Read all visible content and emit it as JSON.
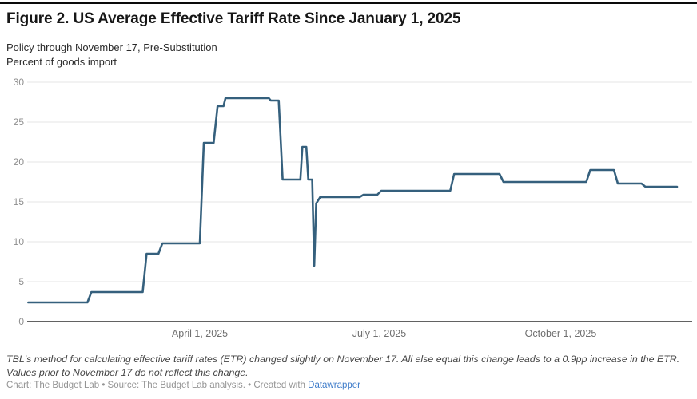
{
  "header": {
    "title": "Figure 2. US Average Effective Tariff Rate Since January 1, 2025",
    "subtitle_line1": "Policy through November 17, Pre-Substitution",
    "subtitle_line2": "Percent of goods import"
  },
  "chart_data": {
    "type": "line",
    "title": "Figure 2. US Average Effective Tariff Rate Since January 1, 2025",
    "subtitle": "Policy through November 17, Pre-Substitution",
    "ylabel": "Percent of goods import",
    "xlabel": "",
    "ylim": [
      0,
      30
    ],
    "y_ticks": [
      0,
      5,
      10,
      15,
      20,
      25,
      30
    ],
    "grid": "horizontal-only",
    "legend": "none",
    "x_domain": [
      "2025-01-01",
      "2025-11-29"
    ],
    "x_ticks": [
      {
        "date": "2025-04-01",
        "label": "April 1, 2025"
      },
      {
        "date": "2025-07-01",
        "label": "July 1, 2025"
      },
      {
        "date": "2025-10-01",
        "label": "October 1, 2025"
      }
    ],
    "line_color": "#35607d",
    "series": [
      {
        "name": "US average effective tariff rate (percent of goods import)",
        "points": [
          {
            "date": "2025-01-04",
            "value": 2.4
          },
          {
            "date": "2025-02-03",
            "value": 2.4
          },
          {
            "date": "2025-02-05",
            "value": 3.7
          },
          {
            "date": "2025-03-03",
            "value": 3.7
          },
          {
            "date": "2025-03-05",
            "value": 8.5
          },
          {
            "date": "2025-03-11",
            "value": 8.5
          },
          {
            "date": "2025-03-13",
            "value": 9.8
          },
          {
            "date": "2025-04-01",
            "value": 9.8
          },
          {
            "date": "2025-04-03",
            "value": 22.4
          },
          {
            "date": "2025-04-08",
            "value": 22.4
          },
          {
            "date": "2025-04-10",
            "value": 27.0
          },
          {
            "date": "2025-04-13",
            "value": 27.0
          },
          {
            "date": "2025-04-14",
            "value": 28.0
          },
          {
            "date": "2025-05-06",
            "value": 28.0
          },
          {
            "date": "2025-05-07",
            "value": 27.7
          },
          {
            "date": "2025-05-11",
            "value": 27.7
          },
          {
            "date": "2025-05-13",
            "value": 17.8
          },
          {
            "date": "2025-05-22",
            "value": 17.8
          },
          {
            "date": "2025-05-23",
            "value": 21.9
          },
          {
            "date": "2025-05-25",
            "value": 21.9
          },
          {
            "date": "2025-05-26",
            "value": 17.8
          },
          {
            "date": "2025-05-28",
            "value": 17.8
          },
          {
            "date": "2025-05-29",
            "value": 7.0
          },
          {
            "date": "2025-05-30",
            "value": 14.8
          },
          {
            "date": "2025-06-01",
            "value": 15.6
          },
          {
            "date": "2025-06-21",
            "value": 15.6
          },
          {
            "date": "2025-06-23",
            "value": 15.9
          },
          {
            "date": "2025-06-30",
            "value": 15.9
          },
          {
            "date": "2025-07-02",
            "value": 16.4
          },
          {
            "date": "2025-08-06",
            "value": 16.4
          },
          {
            "date": "2025-08-08",
            "value": 18.5
          },
          {
            "date": "2025-08-31",
            "value": 18.5
          },
          {
            "date": "2025-09-02",
            "value": 17.5
          },
          {
            "date": "2025-10-14",
            "value": 17.5
          },
          {
            "date": "2025-10-16",
            "value": 19.0
          },
          {
            "date": "2025-10-28",
            "value": 19.0
          },
          {
            "date": "2025-10-30",
            "value": 17.3
          },
          {
            "date": "2025-11-11",
            "value": 17.3
          },
          {
            "date": "2025-11-13",
            "value": 16.9
          },
          {
            "date": "2025-11-29",
            "value": 16.9
          }
        ]
      }
    ]
  },
  "footnote": "TBL's method for calculating effective tariff rates (ETR) changed slightly on November 17. All else equal this change leads to a 0.9pp increase in the ETR. Values prior to November 17 do not reflect this change.",
  "credit": {
    "prefix": "Chart: The Budget Lab • Source: The Budget Lab analysis. • Created with ",
    "link_label": "Datawrapper"
  }
}
